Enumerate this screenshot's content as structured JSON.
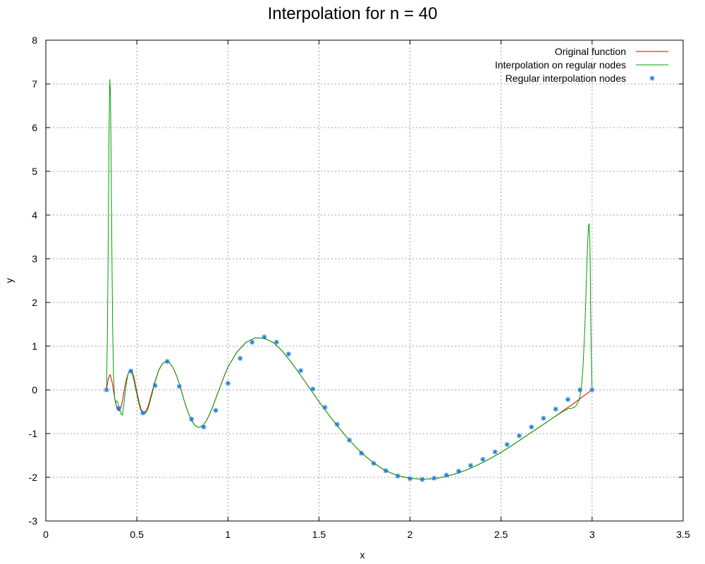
{
  "chart_data": {
    "type": "line",
    "title": "Interpolation for n = 40",
    "xlabel": "x",
    "ylabel": "y",
    "xlim": [
      0,
      3.5
    ],
    "ylim": [
      -3,
      8
    ],
    "xticks": [
      "0",
      "0.5",
      "1",
      "1.5",
      "2",
      "2.5",
      "3",
      "3.5"
    ],
    "yticks": [
      "-3",
      "-2",
      "-1",
      "0",
      "1",
      "2",
      "3",
      "4",
      "5",
      "6",
      "7",
      "8"
    ],
    "grid": true,
    "legend_position": "top-right",
    "colors": {
      "original": "#d40000",
      "interpolation": "#00a000",
      "nodes": "#1a7fd6",
      "grid": "#a0a0a0"
    },
    "series": [
      {
        "name": "Original function",
        "style": "line",
        "x": [
          0.333,
          0.343,
          0.353,
          0.363,
          0.373,
          0.383,
          0.393,
          0.403,
          0.413,
          0.423,
          0.433,
          0.443,
          0.453,
          0.463,
          0.473,
          0.483,
          0.493,
          0.503,
          0.513,
          0.523,
          0.533,
          0.543,
          0.56,
          0.58,
          0.6,
          0.62,
          0.64,
          0.66,
          0.68,
          0.7,
          0.72,
          0.74,
          0.76,
          0.78,
          0.8,
          0.82,
          0.84,
          0.86,
          0.88,
          0.9,
          0.92,
          0.94,
          0.96,
          0.98,
          1.0,
          1.05,
          1.1,
          1.15,
          1.2,
          1.25,
          1.3,
          1.35,
          1.4,
          1.45,
          1.5,
          1.55,
          1.6,
          1.65,
          1.7,
          1.75,
          1.8,
          1.85,
          1.9,
          1.95,
          2.0,
          2.05,
          2.1,
          2.15,
          2.2,
          2.25,
          2.3,
          2.35,
          2.4,
          2.45,
          2.5,
          2.55,
          2.6,
          2.65,
          2.7,
          2.75,
          2.8,
          2.85,
          2.9,
          2.95,
          3.0
        ],
        "y": [
          0.0,
          0.25,
          0.35,
          0.2,
          -0.05,
          -0.3,
          -0.45,
          -0.48,
          -0.4,
          -0.2,
          0.05,
          0.25,
          0.38,
          0.43,
          0.42,
          0.3,
          0.1,
          -0.1,
          -0.3,
          -0.45,
          -0.52,
          -0.53,
          -0.4,
          -0.1,
          0.2,
          0.45,
          0.6,
          0.65,
          0.62,
          0.5,
          0.3,
          0.05,
          -0.25,
          -0.5,
          -0.7,
          -0.82,
          -0.86,
          -0.83,
          -0.72,
          -0.55,
          -0.35,
          -0.12,
          0.1,
          0.32,
          0.52,
          0.87,
          1.09,
          1.19,
          1.18,
          1.08,
          0.88,
          0.62,
          0.33,
          0.03,
          -0.27,
          -0.55,
          -0.82,
          -1.07,
          -1.3,
          -1.5,
          -1.67,
          -1.81,
          -1.91,
          -1.98,
          -2.02,
          -2.04,
          -2.04,
          -2.02,
          -1.98,
          -1.92,
          -1.85,
          -1.76,
          -1.66,
          -1.55,
          -1.43,
          -1.3,
          -1.16,
          -1.02,
          -0.88,
          -0.74,
          -0.6,
          -0.45,
          -0.31,
          -0.15,
          0.0
        ]
      },
      {
        "name": "Interpolation on regular nodes",
        "style": "line",
        "x": [
          0.333,
          0.338,
          0.343,
          0.347,
          0.351,
          0.355,
          0.359,
          0.363,
          0.367,
          0.372,
          0.378,
          0.384,
          0.39,
          0.396,
          0.402,
          0.408,
          0.414,
          0.42,
          0.428,
          0.436,
          0.444,
          0.452,
          0.46,
          0.468,
          0.476,
          0.484,
          0.492,
          0.5,
          0.51,
          0.52,
          0.53,
          0.54,
          0.55,
          0.56,
          0.58,
          0.6,
          0.62,
          0.64,
          0.66,
          0.68,
          0.7,
          0.72,
          0.74,
          0.76,
          0.78,
          0.8,
          0.82,
          0.84,
          0.86,
          0.88,
          0.9,
          0.92,
          0.94,
          0.96,
          0.98,
          1.0,
          1.05,
          1.1,
          1.15,
          1.2,
          1.25,
          1.3,
          1.35,
          1.4,
          1.45,
          1.5,
          1.55,
          1.6,
          1.65,
          1.7,
          1.75,
          1.8,
          1.85,
          1.9,
          1.95,
          2.0,
          2.05,
          2.1,
          2.15,
          2.2,
          2.25,
          2.3,
          2.35,
          2.4,
          2.45,
          2.5,
          2.55,
          2.6,
          2.65,
          2.7,
          2.75,
          2.8,
          2.85,
          2.87,
          2.89,
          2.91,
          2.93,
          2.94,
          2.95,
          2.96,
          2.965,
          2.97,
          2.975,
          2.98,
          2.984,
          2.988,
          2.99,
          2.992,
          2.995,
          2.998,
          3.0
        ],
        "y": [
          0.0,
          1.2,
          3.5,
          5.8,
          7.1,
          6.8,
          5.0,
          3.0,
          1.4,
          0.3,
          -0.2,
          -0.3,
          -0.25,
          -0.3,
          -0.4,
          -0.48,
          -0.55,
          -0.58,
          -0.35,
          -0.05,
          0.2,
          0.37,
          0.44,
          0.43,
          0.35,
          0.22,
          0.05,
          -0.1,
          -0.3,
          -0.45,
          -0.52,
          -0.55,
          -0.52,
          -0.45,
          -0.15,
          0.18,
          0.44,
          0.6,
          0.65,
          0.62,
          0.5,
          0.3,
          0.05,
          -0.25,
          -0.5,
          -0.7,
          -0.82,
          -0.86,
          -0.83,
          -0.72,
          -0.55,
          -0.35,
          -0.12,
          0.1,
          0.32,
          0.52,
          0.87,
          1.09,
          1.19,
          1.18,
          1.08,
          0.88,
          0.62,
          0.33,
          0.03,
          -0.27,
          -0.55,
          -0.82,
          -1.07,
          -1.3,
          -1.5,
          -1.67,
          -1.81,
          -1.91,
          -1.98,
          -2.02,
          -2.04,
          -2.04,
          -2.02,
          -1.98,
          -1.92,
          -1.85,
          -1.76,
          -1.66,
          -1.55,
          -1.43,
          -1.3,
          -1.16,
          -1.02,
          -0.88,
          -0.74,
          -0.6,
          -0.47,
          -0.43,
          -0.42,
          -0.38,
          -0.22,
          0.0,
          0.5,
          1.4,
          2.0,
          2.7,
          3.3,
          3.75,
          3.8,
          3.3,
          2.7,
          1.8,
          0.9,
          0.3,
          0.0
        ]
      },
      {
        "name": "Regular interpolation nodes",
        "style": "points",
        "x": [
          0.333,
          0.4,
          0.467,
          0.533,
          0.6,
          0.667,
          0.733,
          0.8,
          0.867,
          0.933,
          1.0,
          1.067,
          1.133,
          1.2,
          1.267,
          1.333,
          1.4,
          1.467,
          1.533,
          1.6,
          1.667,
          1.733,
          1.8,
          1.867,
          1.933,
          2.0,
          2.067,
          2.133,
          2.2,
          2.267,
          2.333,
          2.4,
          2.467,
          2.533,
          2.6,
          2.667,
          2.733,
          2.8,
          2.867,
          2.933,
          3.0
        ],
        "y": [
          0.0,
          -0.42,
          0.43,
          -0.53,
          0.1,
          0.65,
          0.08,
          -0.67,
          -0.85,
          -0.47,
          0.15,
          0.72,
          1.09,
          1.21,
          1.09,
          0.82,
          0.44,
          0.02,
          -0.4,
          -0.79,
          -1.15,
          -1.45,
          -1.68,
          -1.85,
          -1.97,
          -2.03,
          -2.05,
          -2.02,
          -1.95,
          -1.86,
          -1.73,
          -1.59,
          -1.42,
          -1.25,
          -1.05,
          -0.85,
          -0.65,
          -0.44,
          -0.22,
          0.0,
          0.0
        ]
      }
    ]
  }
}
